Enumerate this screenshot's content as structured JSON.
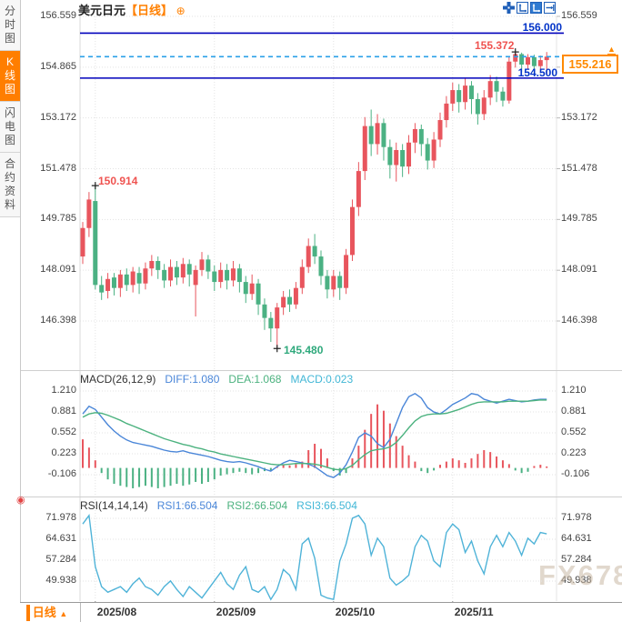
{
  "header": {
    "title": "美元日元",
    "period_tag": "【日线】",
    "add_icon": "⊕",
    "toolbar_icons": [
      "pan-crosshair-icon",
      "scale-axes-icon",
      "scale-axes-active-icon",
      "exit-chart-icon"
    ]
  },
  "sidebar": {
    "tabs": [
      {
        "label": "分时图",
        "active": false
      },
      {
        "label": "K线图",
        "active": true
      },
      {
        "label": "闪电图",
        "active": false
      },
      {
        "label": "合约资料",
        "active": false
      }
    ]
  },
  "price_panel": {
    "y_tick_labels": [
      "156.559",
      "154.865",
      "153.172",
      "151.478",
      "149.785",
      "148.091",
      "146.398"
    ],
    "annotations": {
      "resistance_label": "156.000",
      "support_label": "154.500",
      "last_price_label": "155.216",
      "chart_high_label": "155.372",
      "swing_high_label": "150.914",
      "swing_low_label": "145.480"
    }
  },
  "macd_panel": {
    "title": "MACD(26,12,9)",
    "diff_label": "DIFF:1.080",
    "dea_label": "DEA:1.068",
    "macd_label": "MACD:0.023",
    "y_tick_labels": [
      "1.210",
      "0.881",
      "0.552",
      "0.223",
      "-0.106"
    ]
  },
  "rsi_panel": {
    "title": "RSI(14,14,14)",
    "rsi1_label": "RSI1:66.504",
    "rsi2_label": "RSI2:66.504",
    "rsi3_label": "RSI3:66.504",
    "y_tick_labels": [
      "71.978",
      "64.631",
      "57.284",
      "49.938"
    ]
  },
  "timeline": {
    "period_label": "日线",
    "arrow": "▲",
    "months": [
      "2025/08",
      "2025/09",
      "2025/10",
      "2025/11"
    ]
  },
  "watermark": "FX678",
  "colors": {
    "up": "#e8555d",
    "down": "#4bb183",
    "accent_orange": "#ff7e00",
    "navy_line": "#0000bb",
    "last_price_line": "#2aa0e8",
    "diff_blue": "#4a86d8",
    "dea_green": "#4cb27f",
    "macd_cyan": "#42b7d6",
    "rsi_line": "#4fb3d8",
    "grid": "#e3e3e3"
  },
  "chart_data": [
    {
      "type": "candlestick",
      "title": "USD/JPY daily",
      "color_convention": "red=up, green=down",
      "ylim": [
        146.0,
        156.559
      ],
      "y_ticks": [
        156.559,
        154.865,
        153.172,
        151.478,
        149.785,
        148.091,
        146.398
      ],
      "x_month_labels": [
        "2025/08",
        "2025/09",
        "2025/10",
        "2025/11"
      ],
      "x_month_indices": [
        2,
        21,
        40,
        59
      ],
      "hlines": [
        {
          "price": 156.0,
          "style": "solid",
          "color": "#0000bb"
        },
        {
          "price": 155.216,
          "style": "dashed",
          "color": "#2aa0e8"
        },
        {
          "price": 154.5,
          "style": "solid",
          "color": "#0000bb"
        }
      ],
      "markers": {
        "chart_high": {
          "index": 69,
          "price": 155.372
        },
        "swing_high": {
          "index": 2,
          "price": 150.914
        },
        "swing_low": {
          "index": 31,
          "price": 145.48
        }
      },
      "candles_ochl": [
        [
          148.55,
          149.5,
          149.7,
          148.3
        ],
        [
          149.5,
          150.45,
          150.7,
          149.2
        ],
        [
          150.4,
          147.6,
          150.914,
          147.45
        ],
        [
          147.6,
          147.35,
          147.9,
          147.1
        ],
        [
          147.4,
          147.8,
          148,
          147.15
        ],
        [
          147.85,
          147.5,
          148,
          147.25
        ],
        [
          147.5,
          147.95,
          148.1,
          147.2
        ],
        [
          147.95,
          147.6,
          148.15,
          147.4
        ],
        [
          147.6,
          148.05,
          148.2,
          147.35
        ],
        [
          148,
          147.65,
          148.2,
          147.3
        ],
        [
          147.65,
          148.15,
          148.35,
          147.45
        ],
        [
          148.15,
          148.4,
          148.6,
          147.9
        ],
        [
          148.4,
          148.1,
          148.55,
          147.8
        ],
        [
          148.1,
          147.75,
          148.3,
          147.5
        ],
        [
          147.75,
          148.2,
          148.45,
          147.55
        ],
        [
          148.2,
          147.85,
          148.4,
          147.6
        ],
        [
          147.85,
          148.3,
          148.5,
          147.65
        ],
        [
          148.3,
          147.95,
          148.45,
          147.55
        ],
        [
          147.6,
          148.1,
          148.25,
          146.55
        ],
        [
          148.1,
          148.45,
          148.7,
          147.9
        ],
        [
          148.45,
          148.05,
          148.6,
          147.8
        ],
        [
          148.05,
          147.7,
          148.25,
          147.4
        ],
        [
          147.7,
          148.1,
          148.35,
          147.5
        ],
        [
          148.1,
          147.75,
          148.3,
          147.45
        ],
        [
          147.75,
          148.15,
          148.4,
          147.55
        ],
        [
          148.15,
          147.7,
          148.3,
          147.35
        ],
        [
          147.7,
          147.3,
          147.9,
          147
        ],
        [
          147.3,
          147.65,
          147.95,
          147.1
        ],
        [
          147.65,
          146.95,
          147.8,
          146.6
        ],
        [
          146.95,
          146.5,
          147.15,
          146.1
        ],
        [
          146.5,
          146.15,
          146.7,
          145.7
        ],
        [
          146.15,
          146.85,
          147,
          145.48
        ],
        [
          146.85,
          147.2,
          147.4,
          146.6
        ],
        [
          147.2,
          146.95,
          147.45,
          146.7
        ],
        [
          146.95,
          147.5,
          147.7,
          146.8
        ],
        [
          147.5,
          148.2,
          148.45,
          147.3
        ],
        [
          148.2,
          148.9,
          149.15,
          148
        ],
        [
          148.9,
          148.55,
          149.3,
          148.3
        ],
        [
          148.55,
          147.9,
          148.75,
          147.6
        ],
        [
          147.9,
          147.45,
          148.1,
          147.15
        ],
        [
          147.45,
          147.9,
          148.1,
          147.2
        ],
        [
          147.9,
          147.5,
          148.05,
          147.1
        ],
        [
          147.5,
          148.6,
          148.8,
          147.3
        ],
        [
          148.6,
          150.2,
          150.45,
          148.4
        ],
        [
          150.2,
          151.4,
          151.7,
          149.9
        ],
        [
          151.4,
          152.9,
          153.2,
          151.1
        ],
        [
          152.9,
          152.3,
          153.45,
          151.9
        ],
        [
          152.3,
          153,
          153.3,
          151.95
        ],
        [
          153,
          152.2,
          153.15,
          151.75
        ],
        [
          152.2,
          151.6,
          152.45,
          151.15
        ],
        [
          151.6,
          152.1,
          152.35,
          151.05
        ],
        [
          152.1,
          151.55,
          152.3,
          151.2
        ],
        [
          151.55,
          152.35,
          152.6,
          151.3
        ],
        [
          152.35,
          152.8,
          153,
          152
        ],
        [
          152.8,
          152.3,
          152.95,
          151.9
        ],
        [
          152.3,
          151.75,
          152.5,
          151.45
        ],
        [
          151.75,
          152.45,
          152.7,
          151.5
        ],
        [
          152.45,
          153.1,
          153.35,
          152.2
        ],
        [
          153.1,
          153.65,
          153.9,
          152.85
        ],
        [
          153.65,
          154.1,
          154.35,
          153.4
        ],
        [
          154.1,
          153.7,
          154.3,
          153.35
        ],
        [
          153.7,
          154.25,
          154.5,
          153.45
        ],
        [
          154.25,
          153.8,
          154.4,
          153.3
        ],
        [
          153.8,
          153.3,
          154,
          152.95
        ],
        [
          153.3,
          153.85,
          154.1,
          153.1
        ],
        [
          153.85,
          154.4,
          154.6,
          153.6
        ],
        [
          154.4,
          154.05,
          154.55,
          153.7
        ],
        [
          154.05,
          153.75,
          154.2,
          153.55
        ],
        [
          153.75,
          155.05,
          155.2,
          153.65
        ],
        [
          155.05,
          155.3,
          155.372,
          154.85
        ],
        [
          155.3,
          154.95,
          155.35,
          154.7
        ],
        [
          154.95,
          155.2,
          155.3,
          154.8
        ],
        [
          155.2,
          154.9,
          155.28,
          154.6
        ],
        [
          154.9,
          155.1,
          155.25,
          154.7
        ],
        [
          155.1,
          155.216,
          155.37,
          154.65
        ]
      ]
    },
    {
      "type": "macd",
      "params": "26,12,9",
      "current": {
        "diff": 1.08,
        "dea": 1.068,
        "macd": 0.023
      },
      "y_ticks": [
        1.21,
        0.881,
        0.552,
        0.223,
        -0.106
      ],
      "diff": [
        0.85,
        0.97,
        0.92,
        0.8,
        0.68,
        0.58,
        0.5,
        0.44,
        0.4,
        0.38,
        0.36,
        0.34,
        0.31,
        0.28,
        0.26,
        0.25,
        0.27,
        0.24,
        0.22,
        0.2,
        0.18,
        0.15,
        0.12,
        0.1,
        0.09,
        0.1,
        0.08,
        0.05,
        0.02,
        -0.02,
        -0.05,
        0.02,
        0.08,
        0.12,
        0.1,
        0.08,
        0.06,
        0.02,
        -0.05,
        -0.12,
        -0.15,
        -0.08,
        0.05,
        0.25,
        0.48,
        0.55,
        0.5,
        0.38,
        0.32,
        0.45,
        0.7,
        0.95,
        1.12,
        1.17,
        1.1,
        0.95,
        0.88,
        0.85,
        0.92,
        1.0,
        1.05,
        1.1,
        1.17,
        1.15,
        1.08,
        1.05,
        1.02,
        1.05,
        1.08,
        1.06,
        1.04,
        1.05,
        1.07,
        1.08,
        1.08
      ],
      "dea": [
        0.8,
        0.85,
        0.87,
        0.86,
        0.83,
        0.79,
        0.75,
        0.7,
        0.66,
        0.62,
        0.58,
        0.54,
        0.5,
        0.46,
        0.43,
        0.4,
        0.37,
        0.35,
        0.32,
        0.3,
        0.27,
        0.25,
        0.22,
        0.2,
        0.18,
        0.16,
        0.14,
        0.12,
        0.1,
        0.08,
        0.06,
        0.05,
        0.05,
        0.06,
        0.07,
        0.07,
        0.07,
        0.06,
        0.04,
        0.01,
        -0.02,
        -0.03,
        -0.01,
        0.04,
        0.13,
        0.21,
        0.27,
        0.29,
        0.3,
        0.33,
        0.4,
        0.51,
        0.63,
        0.74,
        0.81,
        0.84,
        0.85,
        0.85,
        0.86,
        0.89,
        0.92,
        0.96,
        1.0,
        1.03,
        1.04,
        1.04,
        1.04,
        1.04,
        1.05,
        1.05,
        1.05,
        1.05,
        1.06,
        1.07,
        1.068
      ],
      "histogram": [
        0.45,
        0.32,
        0.12,
        -0.08,
        -0.18,
        -0.25,
        -0.28,
        -0.3,
        -0.32,
        -0.3,
        -0.28,
        -0.3,
        -0.32,
        -0.3,
        -0.28,
        -0.25,
        -0.28,
        -0.26,
        -0.22,
        -0.25,
        -0.22,
        -0.18,
        -0.12,
        -0.1,
        -0.08,
        -0.06,
        -0.08,
        -0.1,
        -0.08,
        -0.05,
        -0.04,
        0.03,
        0.05,
        0.04,
        0.06,
        0.1,
        0.28,
        0.38,
        0.3,
        0.15,
        -0.05,
        -0.12,
        -0.08,
        0.15,
        0.35,
        0.6,
        0.85,
        1.0,
        0.9,
        0.7,
        0.5,
        0.35,
        0.2,
        0.1,
        -0.05,
        -0.08,
        -0.04,
        0.05,
        0.1,
        0.15,
        0.12,
        0.08,
        0.15,
        0.22,
        0.28,
        0.25,
        0.18,
        0.12,
        0.06,
        -0.04,
        -0.08,
        -0.06,
        0.03,
        0.05,
        0.023
      ]
    },
    {
      "type": "rsi",
      "params": "14,14,14",
      "current": {
        "rsi1": 66.504,
        "rsi2": 66.504,
        "rsi3": 66.504
      },
      "y_ticks": [
        71.978,
        64.631,
        57.284,
        49.938
      ],
      "rsi": [
        70,
        73,
        55,
        48,
        46,
        47,
        48,
        46,
        49,
        51,
        48,
        47,
        45,
        48,
        50,
        47,
        44.5,
        48,
        46,
        44,
        47,
        50,
        53,
        49,
        47,
        52,
        55,
        47,
        46,
        48,
        43.5,
        47,
        54,
        52,
        47,
        63,
        65,
        58,
        45,
        44,
        43.5,
        57,
        63,
        72,
        73,
        70,
        59,
        65,
        62,
        51,
        48.5,
        50,
        52,
        62,
        66,
        64,
        57,
        55,
        67,
        70,
        68,
        60,
        64,
        57,
        52.5,
        62,
        66,
        62,
        67,
        64,
        59,
        65,
        63,
        67,
        66.5
      ]
    }
  ]
}
